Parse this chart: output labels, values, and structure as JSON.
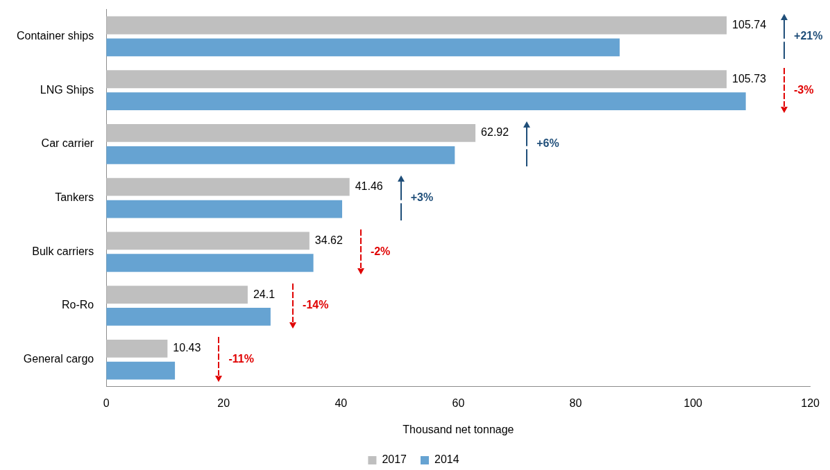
{
  "chart_data": {
    "type": "bar",
    "orientation": "horizontal",
    "categories": [
      "Container ships",
      "LNG Ships",
      "Car carrier",
      "Tankers",
      "Bulk carriers",
      "Ro-Ro",
      "General cargo"
    ],
    "series": [
      {
        "name": "2017",
        "color": "#bfbfbf",
        "values": [
          105.74,
          105.73,
          62.92,
          41.46,
          34.62,
          24.1,
          10.43
        ],
        "value_labels": [
          "105.74",
          "105.73",
          "62.92",
          "41.46",
          "34.62",
          "24.1",
          "10.43"
        ]
      },
      {
        "name": "2014",
        "color": "#66a3d2",
        "values": [
          87.5,
          109,
          59.4,
          40.2,
          35.3,
          28,
          11.7
        ]
      }
    ],
    "xlabel": "Thousand net tonnage",
    "xlim": [
      0,
      120
    ],
    "xticks": [
      0,
      20,
      40,
      60,
      80,
      100,
      120
    ],
    "legend": "bottom",
    "annotations": [
      "+21%",
      "-3%",
      "+6%",
      "+3%",
      "-2%",
      "-14%",
      "-11%"
    ]
  }
}
